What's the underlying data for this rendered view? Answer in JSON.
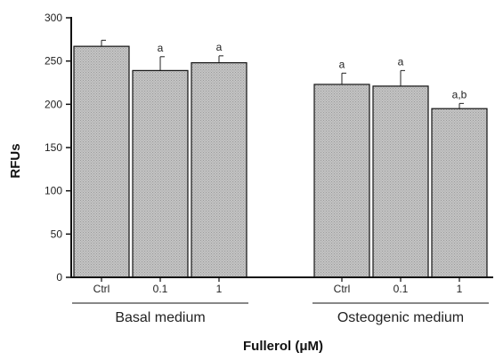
{
  "chart_data": {
    "type": "bar",
    "title": "",
    "ylabel": "RFUs",
    "xlabel": "Fullerol (μM)",
    "ylim": [
      0,
      300
    ],
    "yticks": [
      0,
      50,
      100,
      150,
      200,
      250,
      300
    ],
    "grid": false,
    "bar_color": "#bdbdbd",
    "groups": [
      {
        "name": "Basal medium",
        "bars": [
          {
            "category": "Ctrl",
            "value": 267,
            "error": 7,
            "annotation": ""
          },
          {
            "category": "0.1",
            "value": 239,
            "error": 16,
            "annotation": "a"
          },
          {
            "category": "1",
            "value": 248,
            "error": 8,
            "annotation": "a"
          }
        ]
      },
      {
        "name": "Osteogenic medium",
        "bars": [
          {
            "category": "Ctrl",
            "value": 223,
            "error": 13,
            "annotation": "a"
          },
          {
            "category": "0.1",
            "value": 221,
            "error": 18,
            "annotation": "a"
          },
          {
            "category": "1",
            "value": 195,
            "error": 6,
            "annotation": "a,b"
          }
        ]
      }
    ]
  }
}
